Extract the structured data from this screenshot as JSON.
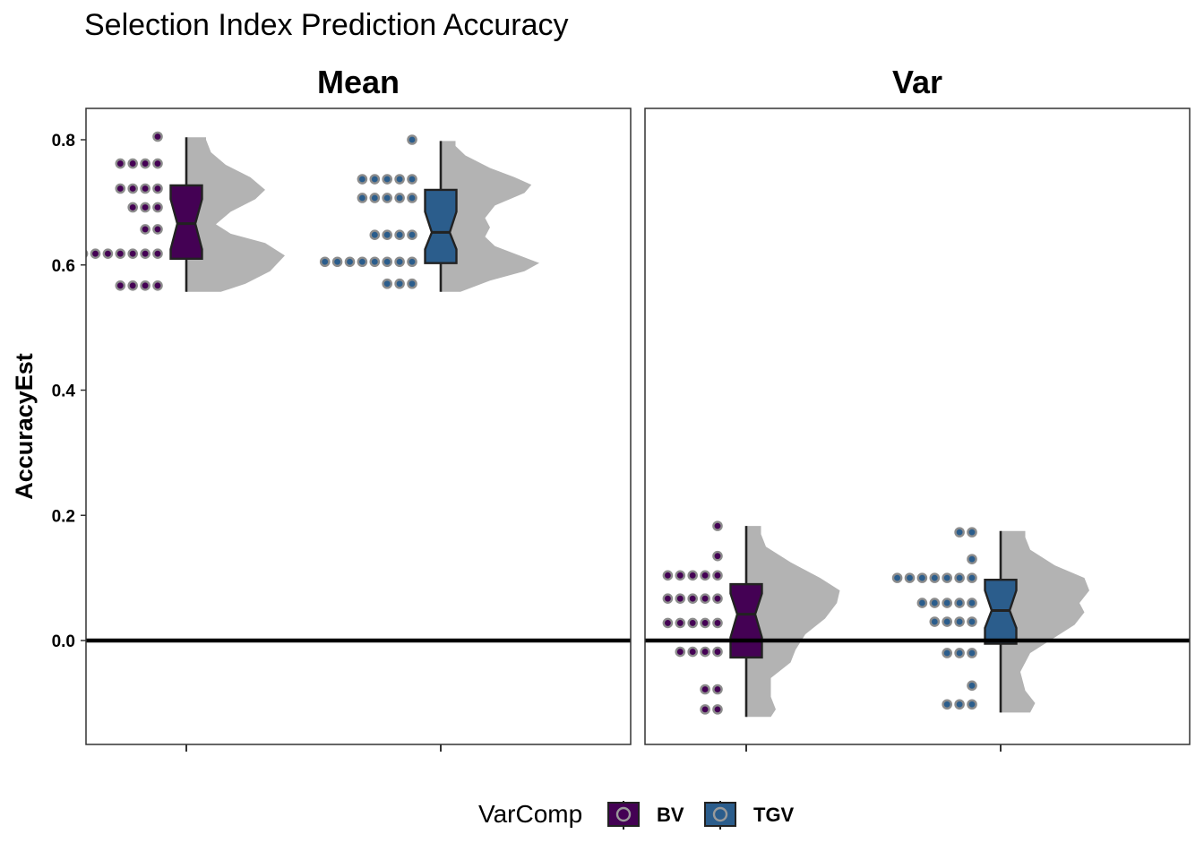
{
  "chart_data": {
    "type": "raincloud",
    "title": "Selection Index Prediction Accuracy",
    "ylabel": "AccuracyEst",
    "xlabel": "",
    "ylim": [
      -0.165,
      0.85
    ],
    "yticks": [
      0.0,
      0.2,
      0.4,
      0.6,
      0.8
    ],
    "ytick_labels": [
      "0.0",
      "0.2",
      "0.4",
      "0.6",
      "0.8"
    ],
    "hline": 0.0,
    "grid": false,
    "legend": {
      "title": "VarComp",
      "placement": "bottom",
      "entries": [
        {
          "label": "BV",
          "color": "#440154"
        },
        {
          "label": "TGV",
          "color": "#2b5d8c"
        }
      ]
    },
    "colors": {
      "BV": "#440154",
      "TGV": "#2b5d8c",
      "cloud": "#b3b3b3",
      "dot_outline": "#8c8c8c"
    },
    "panels": [
      {
        "name": "Mean",
        "groups": [
          {
            "series": "BV",
            "box": {
              "ymin": 0.557,
              "q1": 0.61,
              "median": 0.666,
              "q3": 0.727,
              "ymax": 0.804,
              "notch_low": 0.625,
              "notch_high": 0.705
            },
            "dots": [
              {
                "y": 0.805,
                "n": 1
              },
              {
                "y": 0.762,
                "n": 4
              },
              {
                "y": 0.722,
                "n": 4
              },
              {
                "y": 0.692,
                "n": 3
              },
              {
                "y": 0.657,
                "n": 2
              },
              {
                "y": 0.618,
                "n": 9
              },
              {
                "y": 0.567,
                "n": 4
              }
            ],
            "density": [
              [
                0.557,
                0.35
              ],
              [
                0.57,
                0.6
              ],
              [
                0.59,
                0.85
              ],
              [
                0.615,
                1.0
              ],
              [
                0.635,
                0.8
              ],
              [
                0.65,
                0.45
              ],
              [
                0.665,
                0.3
              ],
              [
                0.685,
                0.45
              ],
              [
                0.705,
                0.7
              ],
              [
                0.72,
                0.8
              ],
              [
                0.74,
                0.65
              ],
              [
                0.76,
                0.4
              ],
              [
                0.78,
                0.25
              ],
              [
                0.8,
                0.2
              ],
              [
                0.804,
                0.2
              ]
            ]
          },
          {
            "series": "TGV",
            "box": {
              "ymin": 0.557,
              "q1": 0.603,
              "median": 0.652,
              "q3": 0.72,
              "ymax": 0.798,
              "notch_low": 0.625,
              "notch_high": 0.685
            },
            "dots": [
              {
                "y": 0.8,
                "n": 1
              },
              {
                "y": 0.737,
                "n": 5
              },
              {
                "y": 0.707,
                "n": 5
              },
              {
                "y": 0.648,
                "n": 4
              },
              {
                "y": 0.605,
                "n": 8
              },
              {
                "y": 0.57,
                "n": 3
              }
            ],
            "density": [
              [
                0.557,
                0.2
              ],
              [
                0.575,
                0.5
              ],
              [
                0.59,
                0.85
              ],
              [
                0.603,
                1.0
              ],
              [
                0.615,
                0.8
              ],
              [
                0.63,
                0.55
              ],
              [
                0.645,
                0.45
              ],
              [
                0.66,
                0.5
              ],
              [
                0.675,
                0.45
              ],
              [
                0.695,
                0.55
              ],
              [
                0.715,
                0.85
              ],
              [
                0.728,
                0.92
              ],
              [
                0.74,
                0.75
              ],
              [
                0.755,
                0.5
              ],
              [
                0.775,
                0.25
              ],
              [
                0.79,
                0.15
              ],
              [
                0.798,
                0.15
              ]
            ]
          }
        ]
      },
      {
        "name": "Var",
        "groups": [
          {
            "series": "BV",
            "box": {
              "ymin": -0.122,
              "q1": -0.027,
              "median": 0.042,
              "q3": 0.09,
              "ymax": 0.183,
              "notch_low": 0.005,
              "notch_high": 0.075
            },
            "dots": [
              {
                "y": 0.183,
                "n": 1
              },
              {
                "y": 0.135,
                "n": 1
              },
              {
                "y": 0.104,
                "n": 5
              },
              {
                "y": 0.067,
                "n": 5
              },
              {
                "y": 0.028,
                "n": 5
              },
              {
                "y": -0.018,
                "n": 4
              },
              {
                "y": -0.078,
                "n": 2
              },
              {
                "y": -0.11,
                "n": 2
              }
            ],
            "density": [
              [
                -0.122,
                0.25
              ],
              [
                -0.11,
                0.3
              ],
              [
                -0.09,
                0.25
              ],
              [
                -0.06,
                0.25
              ],
              [
                -0.035,
                0.45
              ],
              [
                -0.015,
                0.5
              ],
              [
                0.01,
                0.6
              ],
              [
                0.035,
                0.8
              ],
              [
                0.06,
                0.92
              ],
              [
                0.08,
                0.95
              ],
              [
                0.1,
                0.75
              ],
              [
                0.125,
                0.45
              ],
              [
                0.15,
                0.2
              ],
              [
                0.17,
                0.15
              ],
              [
                0.183,
                0.15
              ]
            ]
          },
          {
            "series": "TGV",
            "box": {
              "ymin": -0.115,
              "q1": -0.005,
              "median": 0.048,
              "q3": 0.097,
              "ymax": 0.175,
              "notch_low": 0.02,
              "notch_high": 0.08
            },
            "dots": [
              {
                "y": 0.173,
                "n": 2
              },
              {
                "y": 0.13,
                "n": 1
              },
              {
                "y": 0.1,
                "n": 7
              },
              {
                "y": 0.06,
                "n": 5
              },
              {
                "y": 0.03,
                "n": 4
              },
              {
                "y": -0.02,
                "n": 3
              },
              {
                "y": -0.072,
                "n": 1
              },
              {
                "y": -0.102,
                "n": 3
              }
            ],
            "density": [
              [
                -0.115,
                0.3
              ],
              [
                -0.1,
                0.35
              ],
              [
                -0.08,
                0.25
              ],
              [
                -0.05,
                0.2
              ],
              [
                -0.02,
                0.3
              ],
              [
                0.0,
                0.5
              ],
              [
                0.025,
                0.75
              ],
              [
                0.045,
                0.85
              ],
              [
                0.06,
                0.8
              ],
              [
                0.08,
                0.9
              ],
              [
                0.1,
                0.85
              ],
              [
                0.12,
                0.55
              ],
              [
                0.145,
                0.3
              ],
              [
                0.165,
                0.25
              ],
              [
                0.175,
                0.25
              ]
            ]
          }
        ]
      }
    ]
  }
}
